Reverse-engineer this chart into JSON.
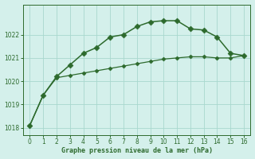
{
  "line1_x": [
    0,
    1,
    2,
    3,
    4,
    5,
    6,
    7,
    8,
    9,
    10,
    11,
    12,
    13,
    14,
    15,
    16
  ],
  "line1_y": [
    1018.1,
    1019.4,
    1020.15,
    1020.25,
    1020.35,
    1020.45,
    1020.55,
    1020.65,
    1020.75,
    1020.85,
    1020.95,
    1021.0,
    1021.05,
    1021.05,
    1021.0,
    1021.0,
    1021.1
  ],
  "line2_x": [
    0,
    1,
    2,
    3,
    4,
    5,
    6,
    7,
    8,
    9,
    10,
    11,
    12,
    13,
    14,
    15,
    16
  ],
  "line2_y": [
    1018.1,
    1019.4,
    1020.2,
    1020.7,
    1021.2,
    1021.45,
    1021.9,
    1022.0,
    1022.35,
    1022.55,
    1022.6,
    1022.6,
    1022.25,
    1022.2,
    1021.9,
    1021.2,
    1021.1
  ],
  "line_color": "#2d6a2d",
  "bg_color": "#d4f0eb",
  "grid_color": "#a8d8ce",
  "xlabel": "Graphe pression niveau de la mer (hPa)",
  "xlim": [
    -0.5,
    16.5
  ],
  "ylim": [
    1017.7,
    1023.3
  ],
  "yticks": [
    1018,
    1019,
    1020,
    1021,
    1022
  ],
  "xticks": [
    0,
    1,
    2,
    3,
    4,
    5,
    6,
    7,
    8,
    9,
    10,
    11,
    12,
    13,
    14,
    15,
    16
  ],
  "marker": "D",
  "markersize1": 2.5,
  "markersize2": 3.5,
  "linewidth1": 0.9,
  "linewidth2": 1.1
}
